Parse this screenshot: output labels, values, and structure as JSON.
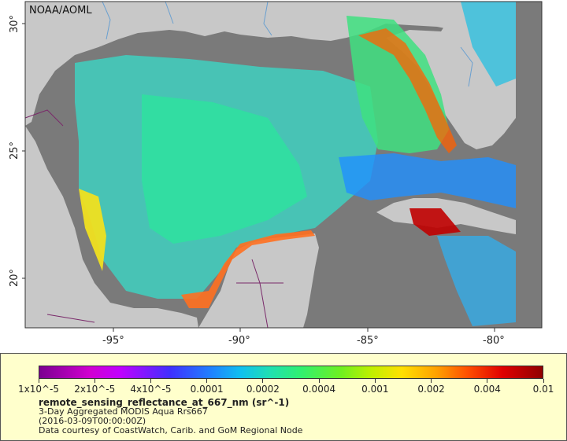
{
  "map": {
    "credit": "NOAA/AOML",
    "lat_labels": [
      "30°",
      "25°",
      "20°"
    ],
    "lon_labels": [
      "-95°",
      "-90°",
      "-85°",
      "-80°"
    ]
  },
  "legend": {
    "ticks": [
      "1x10^-5",
      "2x10^-5",
      "4x10^-5",
      "0.0001",
      "0.0002",
      "0.0004",
      "0.001",
      "0.002",
      "0.004",
      "0.01"
    ],
    "variable": "remote_sensing_reflectance_at_667_nm (sr^-1)",
    "product": "3-Day Aggregated MODIS Aqua Rrs667",
    "date": "(2016-03-09T00:00:00Z)",
    "credit": "Data courtesy of CoastWatch, Carib. and GoM Regional Node"
  },
  "colors": {
    "ocean_nodata": "#7a7a7a",
    "land": "#c8c8c8",
    "legend_bg": "#ffffcc"
  }
}
